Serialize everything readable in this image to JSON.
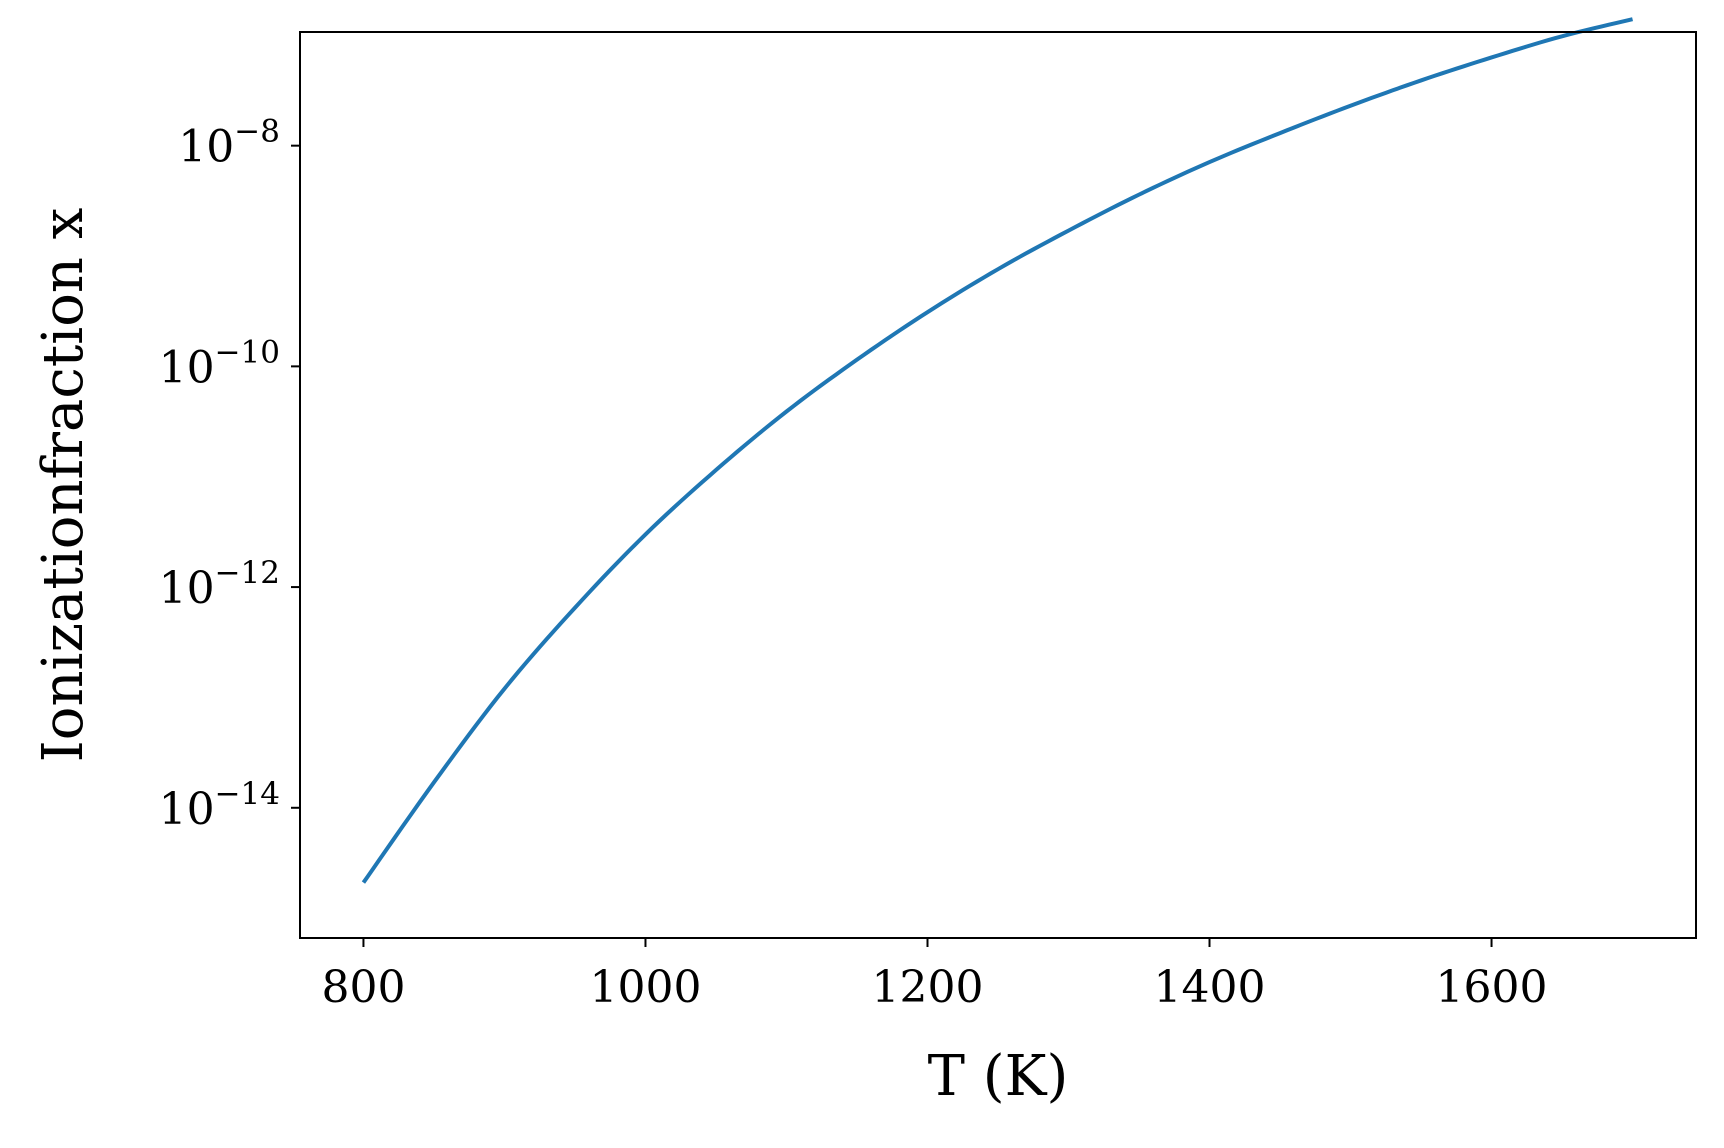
{
  "chart_data": {
    "type": "line",
    "xlabel": "T (K)",
    "ylabel": "Ionizationfraction x",
    "xlim": [
      755,
      1745
    ],
    "ylim_log10": [
      -15.18,
      -6.97
    ],
    "y_scale": "log",
    "grid": false,
    "x_ticks": [
      {
        "value": 800,
        "label": "800"
      },
      {
        "value": 1000,
        "label": "1000"
      },
      {
        "value": 1200,
        "label": "1200"
      },
      {
        "value": 1400,
        "label": "1400"
      },
      {
        "value": 1600,
        "label": "1600"
      }
    ],
    "y_ticks": [
      {
        "value": 1e-14,
        "base": "10",
        "exponent": "−14"
      },
      {
        "value": 1e-12,
        "base": "10",
        "exponent": "−12"
      },
      {
        "value": 1e-10,
        "base": "10",
        "exponent": "−10"
      },
      {
        "value": 1e-08,
        "base": "10",
        "exponent": "−8"
      }
    ],
    "series": [
      {
        "color": "#1f77b4",
        "x": [
          800,
          850,
          900,
          950,
          1000,
          1050,
          1100,
          1150,
          1200,
          1250,
          1300,
          1350,
          1400,
          1450,
          1500,
          1550,
          1600,
          1650,
          1700
        ],
        "y": [
          2.1e-15,
          1.7e-14,
          1.2e-13,
          6.5e-13,
          3e-12,
          1.15e-11,
          3.9e-11,
          1.15e-10,
          3.1e-10,
          7.6e-10,
          1.7e-09,
          3.6e-09,
          7.1e-09,
          1.3e-08,
          2.3e-08,
          3.9e-08,
          6.3e-08,
          9.8e-08,
          1.4e-07
        ]
      }
    ]
  }
}
